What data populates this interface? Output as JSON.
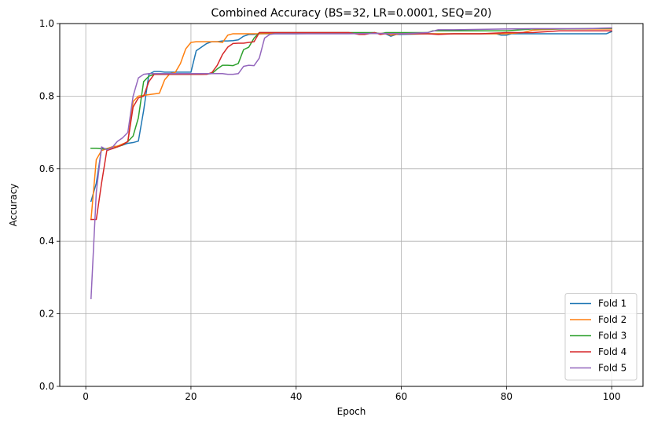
{
  "chart_data": {
    "type": "line",
    "title": "Combined Accuracy (BS=32, LR=0.0001, SEQ=20)",
    "xlabel": "Epoch",
    "ylabel": "Accuracy",
    "xlim": [
      -4.95,
      105.95
    ],
    "ylim": [
      0.0,
      1.0
    ],
    "xticks": [
      0,
      20,
      40,
      60,
      80,
      100
    ],
    "yticks": [
      0.0,
      0.2,
      0.4,
      0.6,
      0.8,
      1.0
    ],
    "xtick_labels": [
      "0",
      "20",
      "40",
      "60",
      "80",
      "100"
    ],
    "ytick_labels": [
      "0.0",
      "0.2",
      "0.4",
      "0.6",
      "0.8",
      "1.0"
    ],
    "grid": true,
    "legend_position": "lower-right",
    "series": [
      {
        "name": "Fold 1",
        "color": "#1f77b4",
        "points": [
          [
            1,
            0.51
          ],
          [
            2,
            0.56
          ],
          [
            3,
            0.655
          ],
          [
            4,
            0.655
          ],
          [
            5,
            0.66
          ],
          [
            6,
            0.662
          ],
          [
            7,
            0.665
          ],
          [
            8,
            0.67
          ],
          [
            9,
            0.672
          ],
          [
            10,
            0.676
          ],
          [
            11,
            0.76
          ],
          [
            12,
            0.86
          ],
          [
            13,
            0.868
          ],
          [
            14,
            0.868
          ],
          [
            15,
            0.866
          ],
          [
            16,
            0.866
          ],
          [
            17,
            0.866
          ],
          [
            18,
            0.866
          ],
          [
            19,
            0.866
          ],
          [
            20,
            0.866
          ],
          [
            21,
            0.925
          ],
          [
            22,
            0.935
          ],
          [
            23,
            0.945
          ],
          [
            24,
            0.95
          ],
          [
            25,
            0.95
          ],
          [
            26,
            0.952
          ],
          [
            27,
            0.952
          ],
          [
            28,
            0.953
          ],
          [
            29,
            0.955
          ],
          [
            30,
            0.965
          ],
          [
            31,
            0.97
          ],
          [
            32,
            0.97
          ],
          [
            33,
            0.972
          ],
          [
            34,
            0.972
          ],
          [
            35,
            0.972
          ],
          [
            40,
            0.972
          ],
          [
            45,
            0.973
          ],
          [
            50,
            0.974
          ],
          [
            55,
            0.973
          ],
          [
            57,
            0.972
          ],
          [
            58,
            0.965
          ],
          [
            59,
            0.97
          ],
          [
            60,
            0.97
          ],
          [
            65,
            0.972
          ],
          [
            70,
            0.972
          ],
          [
            75,
            0.972
          ],
          [
            78,
            0.972
          ],
          [
            79,
            0.968
          ],
          [
            80,
            0.968
          ],
          [
            81,
            0.972
          ],
          [
            85,
            0.972
          ],
          [
            90,
            0.972
          ],
          [
            95,
            0.972
          ],
          [
            99,
            0.972
          ],
          [
            100,
            0.978
          ]
        ]
      },
      {
        "name": "Fold 2",
        "color": "#ff7f0e",
        "points": [
          [
            1,
            0.46
          ],
          [
            2,
            0.625
          ],
          [
            3,
            0.65
          ],
          [
            4,
            0.655
          ],
          [
            5,
            0.66
          ],
          [
            6,
            0.662
          ],
          [
            7,
            0.668
          ],
          [
            8,
            0.674
          ],
          [
            9,
            0.785
          ],
          [
            10,
            0.8
          ],
          [
            11,
            0.802
          ],
          [
            12,
            0.804
          ],
          [
            13,
            0.806
          ],
          [
            14,
            0.808
          ],
          [
            15,
            0.845
          ],
          [
            16,
            0.862
          ],
          [
            17,
            0.865
          ],
          [
            18,
            0.89
          ],
          [
            19,
            0.93
          ],
          [
            20,
            0.948
          ],
          [
            21,
            0.95
          ],
          [
            22,
            0.95
          ],
          [
            23,
            0.95
          ],
          [
            24,
            0.95
          ],
          [
            25,
            0.95
          ],
          [
            26,
            0.948
          ],
          [
            27,
            0.968
          ],
          [
            28,
            0.972
          ],
          [
            29,
            0.972
          ],
          [
            30,
            0.972
          ],
          [
            31,
            0.972
          ],
          [
            32,
            0.972
          ],
          [
            33,
            0.972
          ],
          [
            35,
            0.973
          ],
          [
            40,
            0.973
          ],
          [
            45,
            0.973
          ],
          [
            50,
            0.973
          ],
          [
            55,
            0.973
          ],
          [
            57,
            0.973
          ],
          [
            58,
            0.968
          ],
          [
            60,
            0.972
          ],
          [
            65,
            0.972
          ],
          [
            70,
            0.972
          ],
          [
            80,
            0.972
          ],
          [
            83,
            0.975
          ],
          [
            85,
            0.982
          ],
          [
            90,
            0.985
          ],
          [
            95,
            0.985
          ],
          [
            100,
            0.985
          ]
        ]
      },
      {
        "name": "Fold 3",
        "color": "#2ca02c",
        "points": [
          [
            1,
            0.656
          ],
          [
            2,
            0.656
          ],
          [
            3,
            0.655
          ],
          [
            4,
            0.654
          ],
          [
            5,
            0.655
          ],
          [
            6,
            0.66
          ],
          [
            7,
            0.665
          ],
          [
            8,
            0.675
          ],
          [
            9,
            0.69
          ],
          [
            10,
            0.74
          ],
          [
            11,
            0.84
          ],
          [
            12,
            0.855
          ],
          [
            13,
            0.86
          ],
          [
            14,
            0.86
          ],
          [
            15,
            0.86
          ],
          [
            20,
            0.86
          ],
          [
            22,
            0.86
          ],
          [
            24,
            0.862
          ],
          [
            25,
            0.875
          ],
          [
            26,
            0.885
          ],
          [
            27,
            0.885
          ],
          [
            28,
            0.884
          ],
          [
            29,
            0.89
          ],
          [
            30,
            0.928
          ],
          [
            31,
            0.935
          ],
          [
            32,
            0.96
          ],
          [
            33,
            0.975
          ],
          [
            35,
            0.975
          ],
          [
            40,
            0.975
          ],
          [
            45,
            0.975
          ],
          [
            50,
            0.975
          ],
          [
            55,
            0.975
          ],
          [
            56,
            0.972
          ],
          [
            57,
            0.975
          ],
          [
            60,
            0.975
          ],
          [
            65,
            0.975
          ],
          [
            66,
            0.98
          ],
          [
            70,
            0.98
          ],
          [
            80,
            0.98
          ],
          [
            85,
            0.985
          ],
          [
            90,
            0.985
          ],
          [
            100,
            0.987
          ]
        ]
      },
      {
        "name": "Fold 4",
        "color": "#d62728",
        "points": [
          [
            1,
            0.46
          ],
          [
            2,
            0.46
          ],
          [
            3,
            0.56
          ],
          [
            4,
            0.65
          ],
          [
            5,
            0.655
          ],
          [
            6,
            0.66
          ],
          [
            7,
            0.666
          ],
          [
            8,
            0.675
          ],
          [
            9,
            0.77
          ],
          [
            10,
            0.795
          ],
          [
            11,
            0.8
          ],
          [
            12,
            0.84
          ],
          [
            13,
            0.86
          ],
          [
            14,
            0.86
          ],
          [
            15,
            0.86
          ],
          [
            20,
            0.86
          ],
          [
            23,
            0.86
          ],
          [
            24,
            0.865
          ],
          [
            25,
            0.885
          ],
          [
            26,
            0.915
          ],
          [
            27,
            0.935
          ],
          [
            28,
            0.945
          ],
          [
            29,
            0.946
          ],
          [
            30,
            0.946
          ],
          [
            31,
            0.948
          ],
          [
            32,
            0.95
          ],
          [
            33,
            0.975
          ],
          [
            35,
            0.975
          ],
          [
            40,
            0.975
          ],
          [
            45,
            0.975
          ],
          [
            50,
            0.975
          ],
          [
            52,
            0.97
          ],
          [
            53,
            0.97
          ],
          [
            55,
            0.975
          ],
          [
            56,
            0.97
          ],
          [
            57,
            0.972
          ],
          [
            60,
            0.972
          ],
          [
            65,
            0.972
          ],
          [
            67,
            0.97
          ],
          [
            70,
            0.972
          ],
          [
            75,
            0.972
          ],
          [
            80,
            0.975
          ],
          [
            85,
            0.975
          ],
          [
            90,
            0.98
          ],
          [
            100,
            0.98
          ]
        ]
      },
      {
        "name": "Fold 5",
        "color": "#9467bd",
        "points": [
          [
            1,
            0.242
          ],
          [
            2,
            0.535
          ],
          [
            3,
            0.66
          ],
          [
            4,
            0.652
          ],
          [
            5,
            0.658
          ],
          [
            6,
            0.675
          ],
          [
            7,
            0.685
          ],
          [
            8,
            0.7
          ],
          [
            9,
            0.8
          ],
          [
            10,
            0.85
          ],
          [
            11,
            0.86
          ],
          [
            12,
            0.862
          ],
          [
            13,
            0.862
          ],
          [
            15,
            0.862
          ],
          [
            20,
            0.862
          ],
          [
            23,
            0.862
          ],
          [
            25,
            0.862
          ],
          [
            26,
            0.862
          ],
          [
            27,
            0.86
          ],
          [
            28,
            0.86
          ],
          [
            29,
            0.862
          ],
          [
            30,
            0.882
          ],
          [
            31,
            0.885
          ],
          [
            32,
            0.884
          ],
          [
            33,
            0.905
          ],
          [
            34,
            0.96
          ],
          [
            35,
            0.97
          ],
          [
            36,
            0.972
          ],
          [
            40,
            0.972
          ],
          [
            45,
            0.972
          ],
          [
            50,
            0.972
          ],
          [
            55,
            0.973
          ],
          [
            60,
            0.972
          ],
          [
            65,
            0.975
          ],
          [
            67,
            0.983
          ],
          [
            70,
            0.983
          ],
          [
            75,
            0.984
          ],
          [
            80,
            0.985
          ],
          [
            85,
            0.986
          ],
          [
            90,
            0.986
          ],
          [
            95,
            0.986
          ],
          [
            100,
            0.988
          ]
        ]
      }
    ]
  }
}
